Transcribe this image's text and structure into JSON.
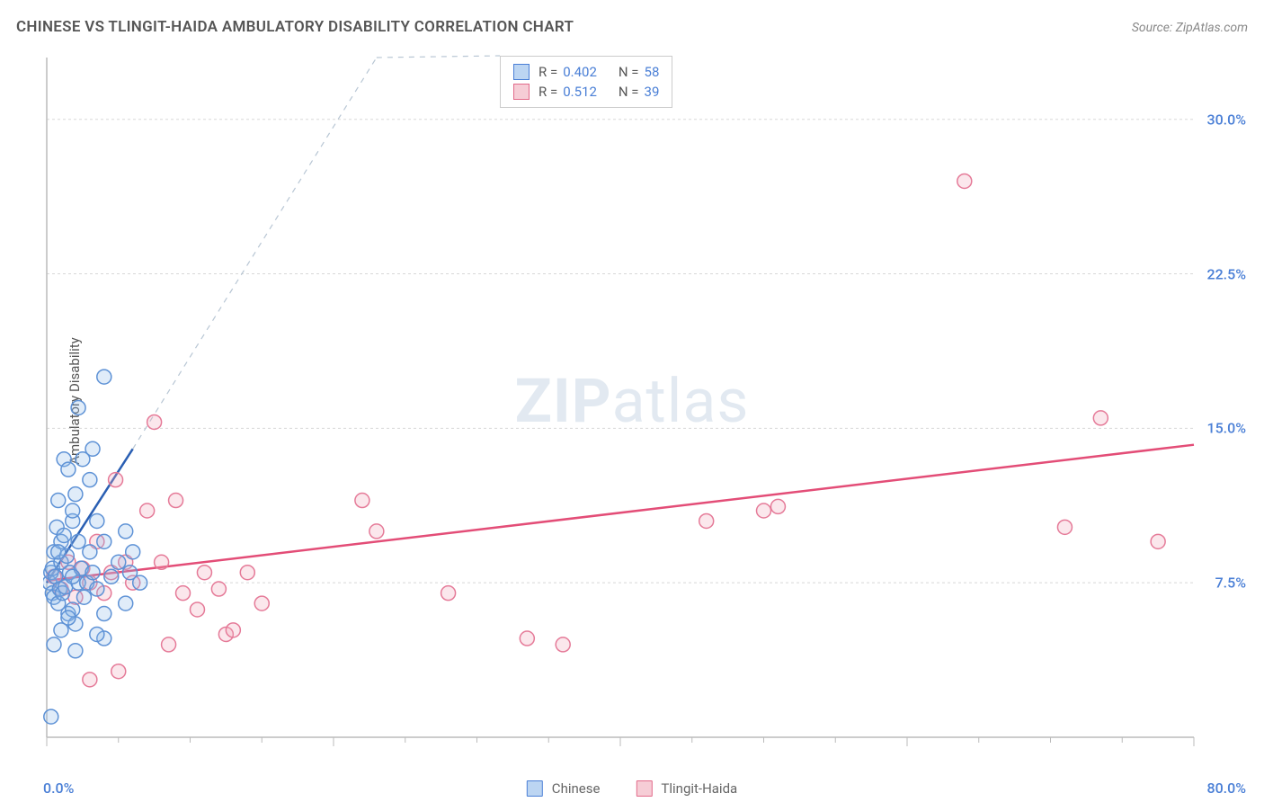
{
  "title": "CHINESE VS TLINGIT-HAIDA AMBULATORY DISABILITY CORRELATION CHART",
  "source_label": "Source: ZipAtlas.com",
  "ylabel": "Ambulatory Disability",
  "watermark": {
    "bold": "ZIP",
    "light": "atlas"
  },
  "chart": {
    "type": "scatter",
    "background_color": "#ffffff",
    "grid_color": "#d8d8d8",
    "axis_color": "#bbbbbb",
    "tick_color": "#bbbbbb",
    "xlim": [
      0,
      80
    ],
    "ylim": [
      0,
      33
    ],
    "x_ticks_step": 20,
    "x_minor_step": 5,
    "y_ticks": [
      7.5,
      15.0,
      22.5,
      30.0
    ],
    "y_tick_labels": [
      "7.5%",
      "15.0%",
      "22.5%",
      "30.0%"
    ],
    "origin_label": "0.0%",
    "xmax_label": "80.0%",
    "marker_radius": 8,
    "marker_stroke_width": 1.5,
    "marker_fill_opacity": 0.28,
    "line_width": 2.5,
    "dashed_width": 1.2,
    "series": {
      "chinese": {
        "label": "Chinese",
        "swatch_fill": "#bcd5f2",
        "swatch_stroke": "#4a7fd6",
        "marker_fill": "#8fb9e8",
        "marker_stroke": "#5e92d6",
        "line_color": "#2a5fb3",
        "dash_color": "#b8c6d4",
        "R": "0.402",
        "N": "58",
        "regression": {
          "x1": 0,
          "y1": 7.5,
          "x2": 6,
          "y2": 14.0
        },
        "dashed_extension": {
          "x1": 6,
          "y1": 14.0,
          "x2": 23,
          "y2": 33
        },
        "points": [
          [
            0.2,
            7.5
          ],
          [
            0.3,
            8.0
          ],
          [
            0.4,
            7.0
          ],
          [
            0.4,
            8.2
          ],
          [
            0.5,
            9.0
          ],
          [
            0.5,
            6.8
          ],
          [
            0.6,
            7.8
          ],
          [
            0.7,
            10.2
          ],
          [
            0.8,
            11.5
          ],
          [
            0.8,
            6.5
          ],
          [
            0.9,
            7.2
          ],
          [
            1.0,
            8.5
          ],
          [
            1.0,
            9.5
          ],
          [
            1.1,
            7.0
          ],
          [
            1.2,
            9.8
          ],
          [
            1.2,
            13.5
          ],
          [
            1.3,
            7.3
          ],
          [
            1.4,
            8.8
          ],
          [
            1.5,
            6.0
          ],
          [
            1.5,
            13.0
          ],
          [
            1.6,
            8.0
          ],
          [
            1.8,
            10.5
          ],
          [
            1.8,
            6.2
          ],
          [
            2.0,
            11.8
          ],
          [
            2.0,
            5.5
          ],
          [
            2.2,
            7.5
          ],
          [
            2.2,
            16.0
          ],
          [
            2.4,
            8.2
          ],
          [
            2.5,
            13.5
          ],
          [
            2.6,
            6.8
          ],
          [
            2.8,
            7.5
          ],
          [
            3.0,
            12.5
          ],
          [
            3.0,
            9.0
          ],
          [
            3.2,
            8.0
          ],
          [
            3.5,
            7.2
          ],
          [
            3.5,
            10.5
          ],
          [
            3.2,
            14.0
          ],
          [
            4.0,
            9.5
          ],
          [
            4.0,
            6.0
          ],
          [
            4.5,
            7.8
          ],
          [
            4.0,
            17.5
          ],
          [
            5.0,
            8.5
          ],
          [
            5.5,
            6.5
          ],
          [
            5.8,
            8.0
          ],
          [
            5.5,
            10.0
          ],
          [
            6.5,
            7.5
          ],
          [
            4.0,
            4.8
          ],
          [
            0.3,
            1.0
          ],
          [
            3.5,
            5.0
          ],
          [
            0.5,
            4.5
          ],
          [
            1.0,
            5.2
          ],
          [
            1.5,
            5.8
          ],
          [
            2.0,
            4.2
          ],
          [
            6.0,
            9.0
          ],
          [
            1.8,
            11.0
          ],
          [
            2.2,
            9.5
          ],
          [
            0.8,
            9.0
          ],
          [
            1.8,
            7.8
          ]
        ]
      },
      "tlingit": {
        "label": "Tlingit-Haida",
        "swatch_fill": "#f6cdd6",
        "swatch_stroke": "#e26a8a",
        "marker_fill": "#f0a8ba",
        "marker_stroke": "#e57a98",
        "line_color": "#e34d77",
        "R": "0.512",
        "N": "39",
        "regression": {
          "x1": 0,
          "y1": 7.6,
          "x2": 80,
          "y2": 14.2
        },
        "points": [
          [
            0.5,
            7.8
          ],
          [
            1.0,
            7.2
          ],
          [
            1.5,
            8.5
          ],
          [
            2.0,
            6.8
          ],
          [
            2.5,
            8.2
          ],
          [
            3.0,
            7.5
          ],
          [
            3.5,
            9.5
          ],
          [
            4.0,
            7.0
          ],
          [
            4.8,
            12.5
          ],
          [
            5.5,
            8.5
          ],
          [
            6.0,
            7.5
          ],
          [
            4.5,
            8.0
          ],
          [
            7.0,
            11.0
          ],
          [
            7.5,
            15.3
          ],
          [
            8.0,
            8.5
          ],
          [
            8.5,
            4.5
          ],
          [
            9.0,
            11.5
          ],
          [
            9.5,
            7.0
          ],
          [
            10.5,
            6.2
          ],
          [
            11.0,
            8.0
          ],
          [
            12.0,
            7.2
          ],
          [
            12.5,
            5.0
          ],
          [
            13.0,
            5.2
          ],
          [
            14.0,
            8.0
          ],
          [
            15.0,
            6.5
          ],
          [
            22.0,
            11.5
          ],
          [
            23.0,
            10.0
          ],
          [
            28.0,
            7.0
          ],
          [
            33.5,
            4.8
          ],
          [
            36.0,
            4.5
          ],
          [
            46.0,
            10.5
          ],
          [
            50.0,
            11.0
          ],
          [
            51.0,
            11.2
          ],
          [
            5.0,
            3.2
          ],
          [
            64.0,
            27.0
          ],
          [
            71.0,
            10.2
          ],
          [
            73.5,
            15.5
          ],
          [
            77.5,
            9.5
          ],
          [
            3.0,
            2.8
          ]
        ]
      }
    },
    "top_legend": {
      "rows": [
        {
          "series": "chinese",
          "R_label": "R =",
          "N_label": "N ="
        },
        {
          "series": "tlingit",
          "R_label": "R =",
          "N_label": "N ="
        }
      ]
    }
  }
}
